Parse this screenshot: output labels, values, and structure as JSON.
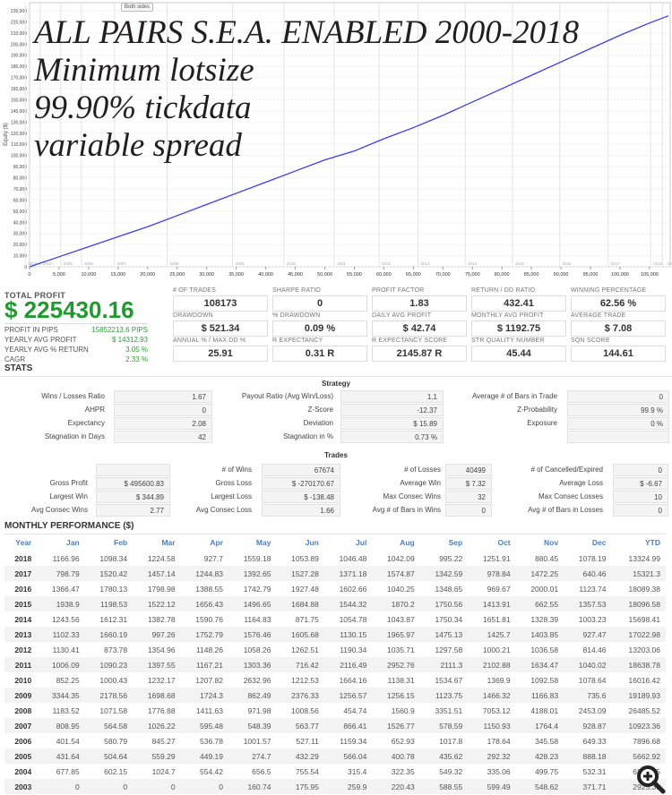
{
  "overlay": {
    "lines": [
      "ALL PAIRS S.E.A. ENABLED 2000-2018",
      "Minimum lotsize",
      "99.90% tickdata",
      "variable spread"
    ]
  },
  "chart_controls": {
    "both_sides_label": "Both sides"
  },
  "chart_data": {
    "type": "line",
    "title": "",
    "xlabel": "",
    "ylabel": "Equity ($)",
    "xlim": [
      0,
      108500
    ],
    "ylim": [
      0,
      230000
    ],
    "x_ticks": [
      0,
      5000,
      10000,
      15000,
      20000,
      25000,
      30000,
      35000,
      40000,
      45000,
      50000,
      55000,
      60000,
      65000,
      70000,
      75000,
      80000,
      85000,
      90000,
      95000,
      100000,
      105000
    ],
    "x_tick_labels": [
      "0",
      "5,000",
      "10,000",
      "15,000",
      "20,000",
      "25,000",
      "30,000",
      "35,000",
      "40,000",
      "45,000",
      "50,000",
      "55,000",
      "60,000",
      "65,000",
      "70,000",
      "75,000",
      "80,000",
      "85,000",
      "90,000",
      "95,000",
      "100,000",
      "105,000"
    ],
    "y_ticks": [
      0,
      10000,
      20000,
      30000,
      40000,
      50000,
      60000,
      70000,
      80000,
      90000,
      100000,
      110000,
      120000,
      130000,
      140000,
      150000,
      160000,
      170000,
      180000,
      190000,
      200000,
      210000,
      220000,
      230000
    ],
    "y_tick_labels": [
      "0",
      "10,000",
      "20,000",
      "30,000",
      "40,000",
      "50,000",
      "60,000",
      "70,000",
      "80,000",
      "90,000",
      "100,000",
      "110,000",
      "120,000",
      "130,000",
      "140,000",
      "150,000",
      "160,000",
      "170,000",
      "180,000",
      "190,000",
      "200,000",
      "210,000",
      "220,000",
      "230,000"
    ],
    "year_markers": [
      {
        "label": "2003",
        "x": 500
      },
      {
        "label": "2004",
        "x": 3000
      },
      {
        "label": "2005",
        "x": 6500
      },
      {
        "label": "2006",
        "x": 10000
      },
      {
        "label": "2007",
        "x": 15600
      },
      {
        "label": "2008",
        "x": 24500
      },
      {
        "label": "2009",
        "x": 35600
      },
      {
        "label": "2010",
        "x": 44300
      },
      {
        "label": "2011",
        "x": 52800
      },
      {
        "label": "2012",
        "x": 60400
      },
      {
        "label": "2013",
        "x": 67000
      },
      {
        "label": "2014",
        "x": 75000
      },
      {
        "label": "2015",
        "x": 83000
      },
      {
        "label": "2016",
        "x": 91000
      },
      {
        "label": "2017",
        "x": 99200
      },
      {
        "label": "2018",
        "x": 106400
      },
      {
        "label": "20",
        "x": 108400
      }
    ],
    "series": [
      {
        "name": "Equity",
        "color": "#3b3bf0",
        "x": [
          0,
          5000,
          10000,
          15000,
          20000,
          25000,
          30000,
          35000,
          40000,
          45000,
          50000,
          55000,
          60000,
          65000,
          70000,
          75000,
          80000,
          85000,
          90000,
          95000,
          100000,
          105000,
          108173
        ],
        "y": [
          0,
          9000,
          18000,
          27000,
          36000,
          46000,
          56000,
          66000,
          76000,
          86000,
          96000,
          104000,
          115000,
          125000,
          136000,
          148000,
          160000,
          172000,
          184000,
          196000,
          208000,
          219000,
          225430
        ]
      }
    ],
    "grid": true
  },
  "summary": {
    "total_profit_label": "TOTAL PROFIT",
    "total_profit": "$ 225430.16",
    "rows": [
      {
        "label": "PROFIT IN PIPS",
        "value": "15852213.6 PIPS"
      },
      {
        "label": "YEARLY AVG PROFIT",
        "value": "$ 14312.93"
      },
      {
        "label": "YEARLY AVG % RETURN",
        "value": "3.05 %"
      },
      {
        "label": "CAGR",
        "value": "2.33 %"
      }
    ],
    "metrics": [
      {
        "label": "# OF TRADES",
        "value": "108173"
      },
      {
        "label": "SHARPE RATIO",
        "value": "0"
      },
      {
        "label": "PROFIT FACTOR",
        "value": "1.83"
      },
      {
        "label": "RETURN / DD RATIO",
        "value": "432.41"
      },
      {
        "label": "WINNING PERCENTAGE",
        "value": "62.56 %"
      },
      {
        "label": "DRAWDOWN",
        "value": "$ 521.34"
      },
      {
        "label": "% DRAWDOWN",
        "value": "0.09 %"
      },
      {
        "label": "DAILY AVG PROFIT",
        "value": "$ 42.74"
      },
      {
        "label": "MONTHLY AVG PROFIT",
        "value": "$ 1192.75"
      },
      {
        "label": "AVERAGE TRADE",
        "value": "$ 7.08"
      },
      {
        "label": "ANNUAL % / MAX DD %",
        "value": "25.91"
      },
      {
        "label": "R EXPECTANCY",
        "value": "0.31 R"
      },
      {
        "label": "R EXPECTANCY SCORE",
        "value": "2145.87 R"
      },
      {
        "label": "STR QUALITY NUMBER",
        "value": "45.44"
      },
      {
        "label": "SQN SCORE",
        "value": "144.61"
      }
    ]
  },
  "stats": {
    "heading": "STATS",
    "strategy_title": "Strategy",
    "strategy": [
      [
        {
          "label": "Wins / Losses Ratio",
          "value": "1.67"
        },
        {
          "label": "Payout Ratio (Avg Win/Loss)",
          "value": "1.1"
        },
        {
          "label": "Average # of Bars in Trade",
          "value": "0"
        }
      ],
      [
        {
          "label": "AHPR",
          "value": "0"
        },
        {
          "label": "Z-Score",
          "value": "-12.37"
        },
        {
          "label": "Z-Probability",
          "value": "99.9 %"
        }
      ],
      [
        {
          "label": "Expectancy",
          "value": "2.08"
        },
        {
          "label": "Deviation",
          "value": "$ 15.89"
        },
        {
          "label": "Exposure",
          "value": "0 %"
        }
      ],
      [
        {
          "label": "Stagnation in Days",
          "value": "42"
        },
        {
          "label": "Stagnation in %",
          "value": "0.73 %"
        },
        {
          "label": "",
          "value": ""
        }
      ]
    ],
    "trades_title": "Trades",
    "trades": [
      [
        {
          "label": "",
          "value": ""
        },
        {
          "label": "# of Wins",
          "value": "67674"
        },
        {
          "label": "# of Losses",
          "value": "40499"
        },
        {
          "label": "# of Cancelled/Expired",
          "value": "0"
        }
      ],
      [
        {
          "label": "Gross Profit",
          "value": "$ 495600.83"
        },
        {
          "label": "Gross Loss",
          "value": "$ -270170.67"
        },
        {
          "label": "Average Win",
          "value": "$ 7.32"
        },
        {
          "label": "Average Loss",
          "value": "$ -6.67"
        }
      ],
      [
        {
          "label": "Largest Win",
          "value": "$ 344.89"
        },
        {
          "label": "Largest Loss",
          "value": "$ -138.48"
        },
        {
          "label": "Max Consec Wins",
          "value": "32"
        },
        {
          "label": "Max Consec Losses",
          "value": "10"
        }
      ],
      [
        {
          "label": "Avg Consec Wins",
          "value": "2.77"
        },
        {
          "label": "Avg Consec Loss",
          "value": "1.66"
        },
        {
          "label": "Avg # of Bars in Wins",
          "value": "0"
        },
        {
          "label": "Avg # of Bars in Losses",
          "value": "0"
        }
      ]
    ]
  },
  "monthly": {
    "heading": "MONTHLY PERFORMANCE ($)",
    "columns": [
      "Year",
      "Jan",
      "Feb",
      "Mar",
      "Apr",
      "May",
      "Jun",
      "Jul",
      "Aug",
      "Sep",
      "Oct",
      "Nov",
      "Dec",
      "YTD"
    ],
    "rows": [
      [
        "2018",
        "1166.96",
        "1098.34",
        "1224.58",
        "927.7",
        "1559.18",
        "1053.89",
        "1046.48",
        "1042.09",
        "995.22",
        "1251.91",
        "880.45",
        "1078.19",
        "13324.99"
      ],
      [
        "2017",
        "798.79",
        "1520.42",
        "1457.14",
        "1244.83",
        "1392.65",
        "1527.28",
        "1371.18",
        "1574.87",
        "1342.59",
        "978.84",
        "1472.25",
        "640.46",
        "15321.3"
      ],
      [
        "2016",
        "1366.47",
        "1780.13",
        "1798.98",
        "1388.55",
        "1742.79",
        "1927.48",
        "1602.66",
        "1040.25",
        "1348.65",
        "969.67",
        "2000.01",
        "1123.74",
        "18089.38"
      ],
      [
        "2015",
        "1938.9",
        "1198.53",
        "1522.12",
        "1656.43",
        "1496.65",
        "1684.88",
        "1544.32",
        "1870.2",
        "1750.56",
        "1413.91",
        "662.55",
        "1357.53",
        "18096.58"
      ],
      [
        "2014",
        "1243.56",
        "1612.31",
        "1382.78",
        "1590.76",
        "1164.83",
        "871.75",
        "1054.78",
        "1043.87",
        "1750.34",
        "1651.81",
        "1328.39",
        "1003.23",
        "15698.41"
      ],
      [
        "2013",
        "1102.33",
        "1660.19",
        "997.26",
        "1752.79",
        "1576.46",
        "1605.68",
        "1130.15",
        "1965.97",
        "1475.13",
        "1425.7",
        "1403.85",
        "927.47",
        "17022.98"
      ],
      [
        "2012",
        "1130.41",
        "873.78",
        "1354.96",
        "1148.26",
        "1058.26",
        "1262.51",
        "1190.34",
        "1035.71",
        "1297.58",
        "1000.21",
        "1036.58",
        "814.46",
        "13203.06"
      ],
      [
        "2011",
        "1006.09",
        "1090.23",
        "1397.55",
        "1167.21",
        "1303.36",
        "716.42",
        "2116.49",
        "2952.76",
        "2111.3",
        "2102.88",
        "1634.47",
        "1040.02",
        "18638.78"
      ],
      [
        "2010",
        "852.25",
        "1000.43",
        "1232.17",
        "1207.82",
        "2632.96",
        "1212.53",
        "1664.16",
        "1138.31",
        "1534.67",
        "1369.9",
        "1092.58",
        "1078.64",
        "16016.42"
      ],
      [
        "2009",
        "3344.35",
        "2178.56",
        "1698.68",
        "1724.3",
        "862.49",
        "2376.33",
        "1256.57",
        "1256.15",
        "1123.75",
        "1466.32",
        "1166.83",
        "735.6",
        "19189.93"
      ],
      [
        "2008",
        "1183.52",
        "1071.58",
        "1776.88",
        "1411.63",
        "971.98",
        "1008.56",
        "454.74",
        "1560.9",
        "3351.51",
        "7053.12",
        "4188.01",
        "2453.09",
        "26485.52"
      ],
      [
        "2007",
        "808.95",
        "564.58",
        "1026.22",
        "595.48",
        "548.39",
        "563.77",
        "866.41",
        "1526.77",
        "578.59",
        "1150.93",
        "1764.4",
        "928.87",
        "10923.36"
      ],
      [
        "2006",
        "401.54",
        "580.79",
        "845.27",
        "536.78",
        "1001.57",
        "527.11",
        "1159.34",
        "652.93",
        "1017.8",
        "178.64",
        "345.58",
        "649.33",
        "7896.68"
      ],
      [
        "2005",
        "431.64",
        "504.64",
        "559.29",
        "449.19",
        "274.7",
        "432.29",
        "566.04",
        "400.78",
        "435.62",
        "292.32",
        "428.23",
        "888.18",
        "5662.92"
      ],
      [
        "2004",
        "677.85",
        "602.15",
        "1024.7",
        "554.42",
        "656.5",
        "755.54",
        "315.4",
        "322.35",
        "549.32",
        "335.06",
        "499.75",
        "532.31",
        "6825.35"
      ],
      [
        "2003",
        "0",
        "0",
        "0",
        "0",
        "160.74",
        "175.95",
        "259.9",
        "220.43",
        "588.55",
        "599.49",
        "548.62",
        "371.71",
        "2925.39"
      ]
    ]
  }
}
